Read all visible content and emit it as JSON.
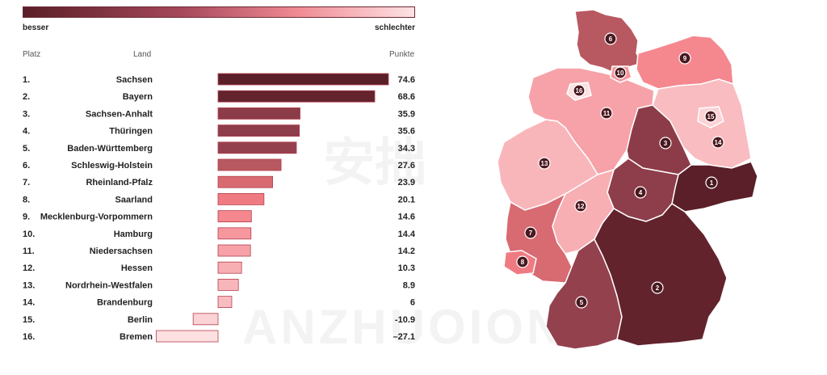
{
  "legend": {
    "left_label": "besser",
    "right_label": "schlechter"
  },
  "headers": {
    "rank": "Platz",
    "state": "Land",
    "score": "Punkte"
  },
  "chart_data": {
    "type": "bar",
    "orientation": "horizontal",
    "xlim": [
      -27.1,
      74.6
    ],
    "rows": [
      {
        "rank": "1.",
        "state": "Sachsen",
        "value": 74.6,
        "label": "74.6",
        "color": "#5a1f28"
      },
      {
        "rank": "2.",
        "state": "Bayern",
        "value": 68.6,
        "label": "68.6",
        "color": "#62232d"
      },
      {
        "rank": "3.",
        "state": "Sachsen-Anhalt",
        "value": 35.9,
        "label": "35.9",
        "color": "#8c3c48"
      },
      {
        "rank": "4.",
        "state": "Thüringen",
        "value": 35.6,
        "label": "35.6",
        "color": "#8e3d4a"
      },
      {
        "rank": "5.",
        "state": "Baden-Württemberg",
        "value": 34.3,
        "label": "34.3",
        "color": "#94414e"
      },
      {
        "rank": "6.",
        "state": "Schleswig-Holstein",
        "value": 27.6,
        "label": "27.6",
        "color": "#b85860"
      },
      {
        "rank": "7.",
        "state": "Rheinland-Pfalz",
        "value": 23.9,
        "label": "23.9",
        "color": "#d86a72"
      },
      {
        "rank": "8.",
        "state": "Saarland",
        "value": 20.1,
        "label": "20.1",
        "color": "#f07a82"
      },
      {
        "rank": "9.",
        "state": "Mecklenburg-Vorpommern",
        "value": 14.6,
        "label": "14.6",
        "color": "#f5878f"
      },
      {
        "rank": "10.",
        "state": "Hamburg",
        "value": 14.4,
        "label": "14.4",
        "color": "#f6979e"
      },
      {
        "rank": "11.",
        "state": "Niedersachsen",
        "value": 14.2,
        "label": "14.2",
        "color": "#f6a2a8"
      },
      {
        "rank": "12.",
        "state": "Hessen",
        "value": 10.3,
        "label": "10.3",
        "color": "#f8afb4"
      },
      {
        "rank": "13.",
        "state": "Nordrhein-Westfalen",
        "value": 8.9,
        "label": "8.9",
        "color": "#f9b6ba"
      },
      {
        "rank": "14.",
        "state": "Brandenburg",
        "value": 6,
        "label": "6",
        "color": "#f9bcc0"
      },
      {
        "rank": "15.",
        "state": "Berlin",
        "value": -10.9,
        "label": "-10.9",
        "color": "#fbd2d5"
      },
      {
        "rank": "16.",
        "state": "Bremen",
        "value": -27.1,
        "label": "–27.1",
        "color": "#fde0e2"
      }
    ]
  },
  "watermark": {
    "brand": "ANZHUOION",
    "characters": "安拙"
  }
}
